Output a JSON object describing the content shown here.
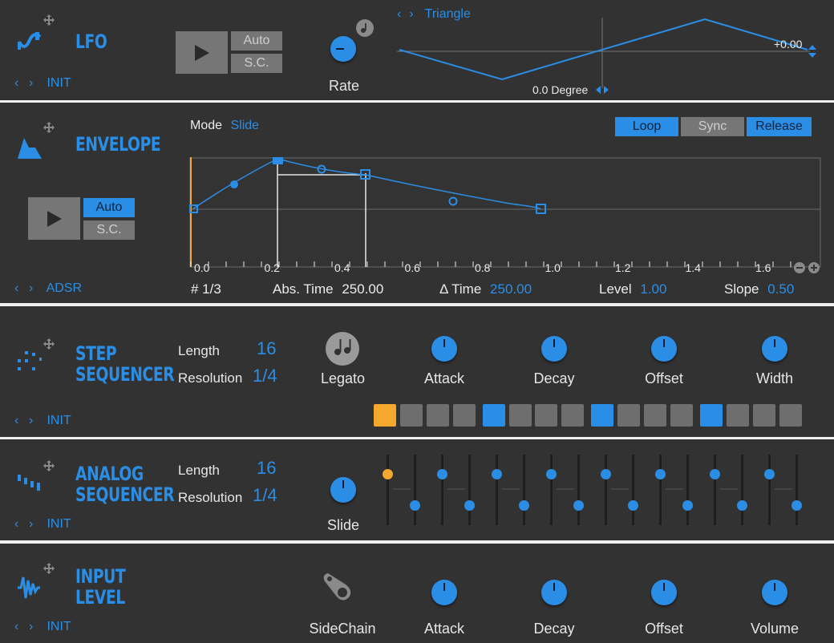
{
  "lfo": {
    "title": "LFO",
    "preset": "INIT",
    "play_auto": "Auto",
    "play_sc": "S.C.",
    "rate_label": "Rate",
    "waveform": "Triangle",
    "value_readout": "+0.00",
    "phase": "0.0 Degree"
  },
  "envelope": {
    "title": "ENVELOPE",
    "mode_label": "Mode",
    "mode_value": "Slide",
    "loop": "Loop",
    "sync": "Sync",
    "release": "Release",
    "play_auto": "Auto",
    "play_sc": "S.C.",
    "preset": "ADSR",
    "time_ticks": [
      "0.0",
      "0.2",
      "0.4",
      "0.6",
      "0.8",
      "1.0",
      "1.2",
      "1.4",
      "1.6"
    ],
    "point_label": "# 1/3",
    "abs_time_label": "Abs. Time",
    "abs_time_value": "250.00",
    "delta_time_label": "Δ Time",
    "delta_time_value": "250.00",
    "level_label": "Level",
    "level_value": "1.00",
    "slope_label": "Slope",
    "slope_value": "0.50",
    "zoom_out": "−",
    "zoom_in": "+"
  },
  "step_seq": {
    "title1": "STEP",
    "title2": "SEQUENCER",
    "preset": "INIT",
    "length_label": "Length",
    "length_value": "16",
    "resolution_label": "Resolution",
    "resolution_value": "1/4",
    "legato": "Legato",
    "attack": "Attack",
    "decay": "Decay",
    "offset": "Offset",
    "width": "Width",
    "steps": [
      "cur",
      "off",
      "off",
      "off",
      "on",
      "off",
      "off",
      "off",
      "on",
      "off",
      "off",
      "off",
      "on",
      "off",
      "off",
      "off"
    ]
  },
  "analog_seq": {
    "title1": "ANALOG",
    "title2": "SEQUENCER",
    "preset": "INIT",
    "length_label": "Length",
    "length_value": "16",
    "resolution_label": "Resolution",
    "resolution_value": "1/4",
    "slide": "Slide",
    "levels": [
      1,
      0,
      1,
      0,
      1,
      0,
      1,
      0,
      1,
      0,
      1,
      0,
      1,
      0,
      1,
      0
    ]
  },
  "input_level": {
    "title1": "INPUT",
    "title2": "LEVEL",
    "preset": "INIT",
    "sidechain": "SideChain",
    "attack": "Attack",
    "decay": "Decay",
    "offset": "Offset",
    "volume": "Volume"
  },
  "colors": {
    "accent": "#2b8ee6",
    "current": "#f4a82c",
    "panel": "#323232"
  }
}
